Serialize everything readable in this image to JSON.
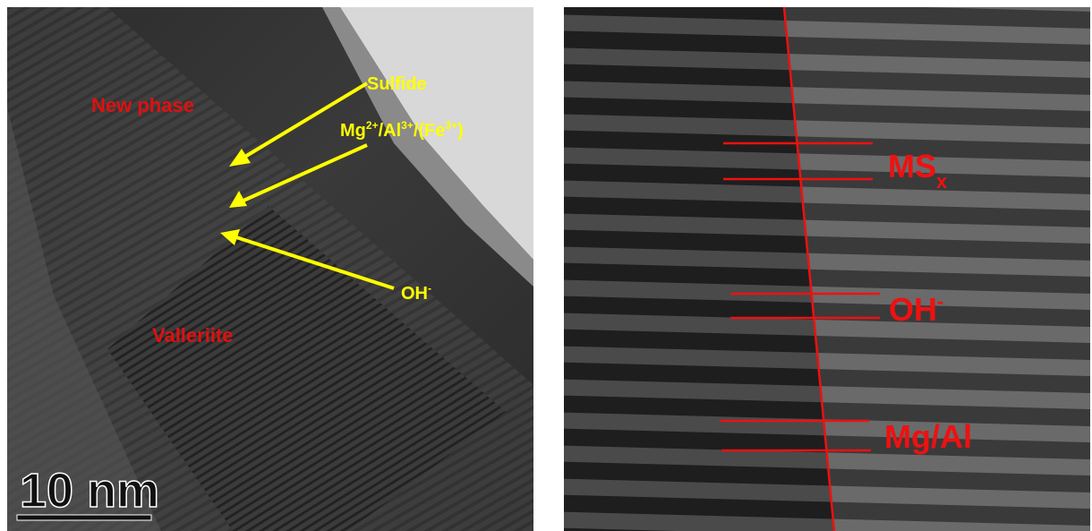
{
  "left_panel": {
    "labels": {
      "new_phase": "New phase",
      "sulfide": "Sulfide",
      "cations": [
        "Mg",
        "2+",
        "/Al",
        "3+",
        "/(Fe",
        "3+",
        ")"
      ],
      "hydroxide": [
        "OH",
        "-"
      ],
      "valleriite": "Valleriite"
    },
    "scale_bar": "10 nm"
  },
  "right_panel": {
    "labels": {
      "sulfide_layer": [
        "MS",
        "x"
      ],
      "hydroxide_layer": [
        "OH",
        "-"
      ],
      "cation_layer": "Mg/Al"
    }
  }
}
